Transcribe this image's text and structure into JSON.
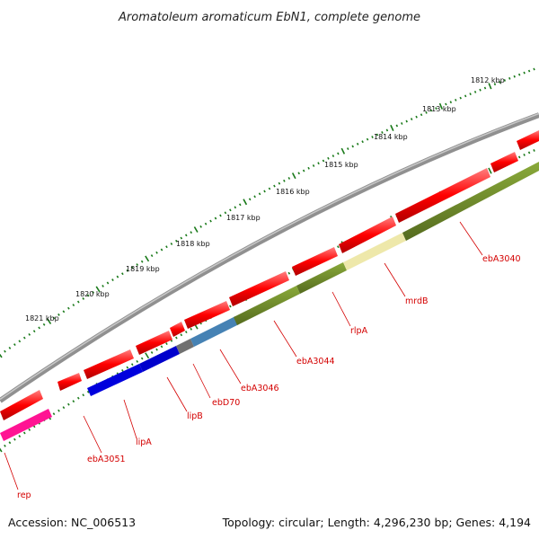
{
  "title": "Aromatoleum aromaticum EbN1, complete genome",
  "footer": {
    "accession": "Accession: NC_006513",
    "stats": "Topology: circular; Length: 4,296,230 bp; Genes: 4,194"
  },
  "ruler_labels": [
    "1812 kbp",
    "1813 kbp",
    "1814 kbp",
    "1815 kbp",
    "1816 kbp",
    "1817 kbp",
    "1818 kbp",
    "1819 kbp",
    "1820 kbp",
    "1821 kbp"
  ],
  "gene_labels": [
    "ebA3040",
    "mrdB",
    "rlpA",
    "ebA3044",
    "ebA3046",
    "ebD70",
    "lipB",
    "lipA",
    "ebA3051",
    "rep"
  ],
  "colors": {
    "backbone": "#808080",
    "cds_red": "#ff0000",
    "olive": "#6b8e23",
    "khaki": "#eee8aa",
    "blue": "#0000dd",
    "steelblue": "#4682b4",
    "gray": "#707070",
    "magenta": "#ff1493",
    "tick_green": "#1a7a1a",
    "label_red": "#d40000"
  }
}
